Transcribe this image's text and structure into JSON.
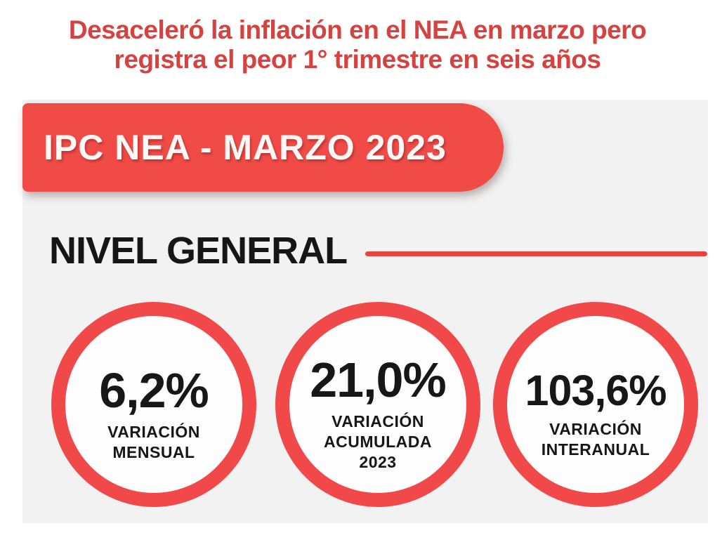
{
  "headline": {
    "line1": "Desaceleró la inflación en el NEA en marzo pero",
    "line2": "registra el peor 1° trimestre en seis años"
  },
  "banner": {
    "title": "IPC NEA - MARZO 2023"
  },
  "section": {
    "title": "NIVEL GENERAL"
  },
  "stats": [
    {
      "value": "6,2%",
      "label": "VARIACIÓN\nMENSUAL"
    },
    {
      "value": "21,0%",
      "label": "VARIACIÓN\nACUMULADA\n2023"
    },
    {
      "value": "103,6%",
      "label": "VARIACIÓN\nINTERANUAL"
    }
  ],
  "colors": {
    "accent_red": "#f1484a",
    "headline_red": "#d5423f",
    "panel_gray": "#f2f2f2",
    "text_black": "#171717"
  },
  "chart_data": {
    "type": "table",
    "title": "IPC NEA - MARZO 2023",
    "subtitle": "NIVEL GENERAL",
    "categories": [
      "VARIACIÓN MENSUAL",
      "VARIACIÓN ACUMULADA 2023",
      "VARIACIÓN INTERANUAL"
    ],
    "values": [
      6.2,
      21.0,
      103.6
    ],
    "unit": "%",
    "annotations": [
      "Desaceleró la inflación en el NEA en marzo pero registra el peor 1° trimestre en seis años"
    ]
  }
}
